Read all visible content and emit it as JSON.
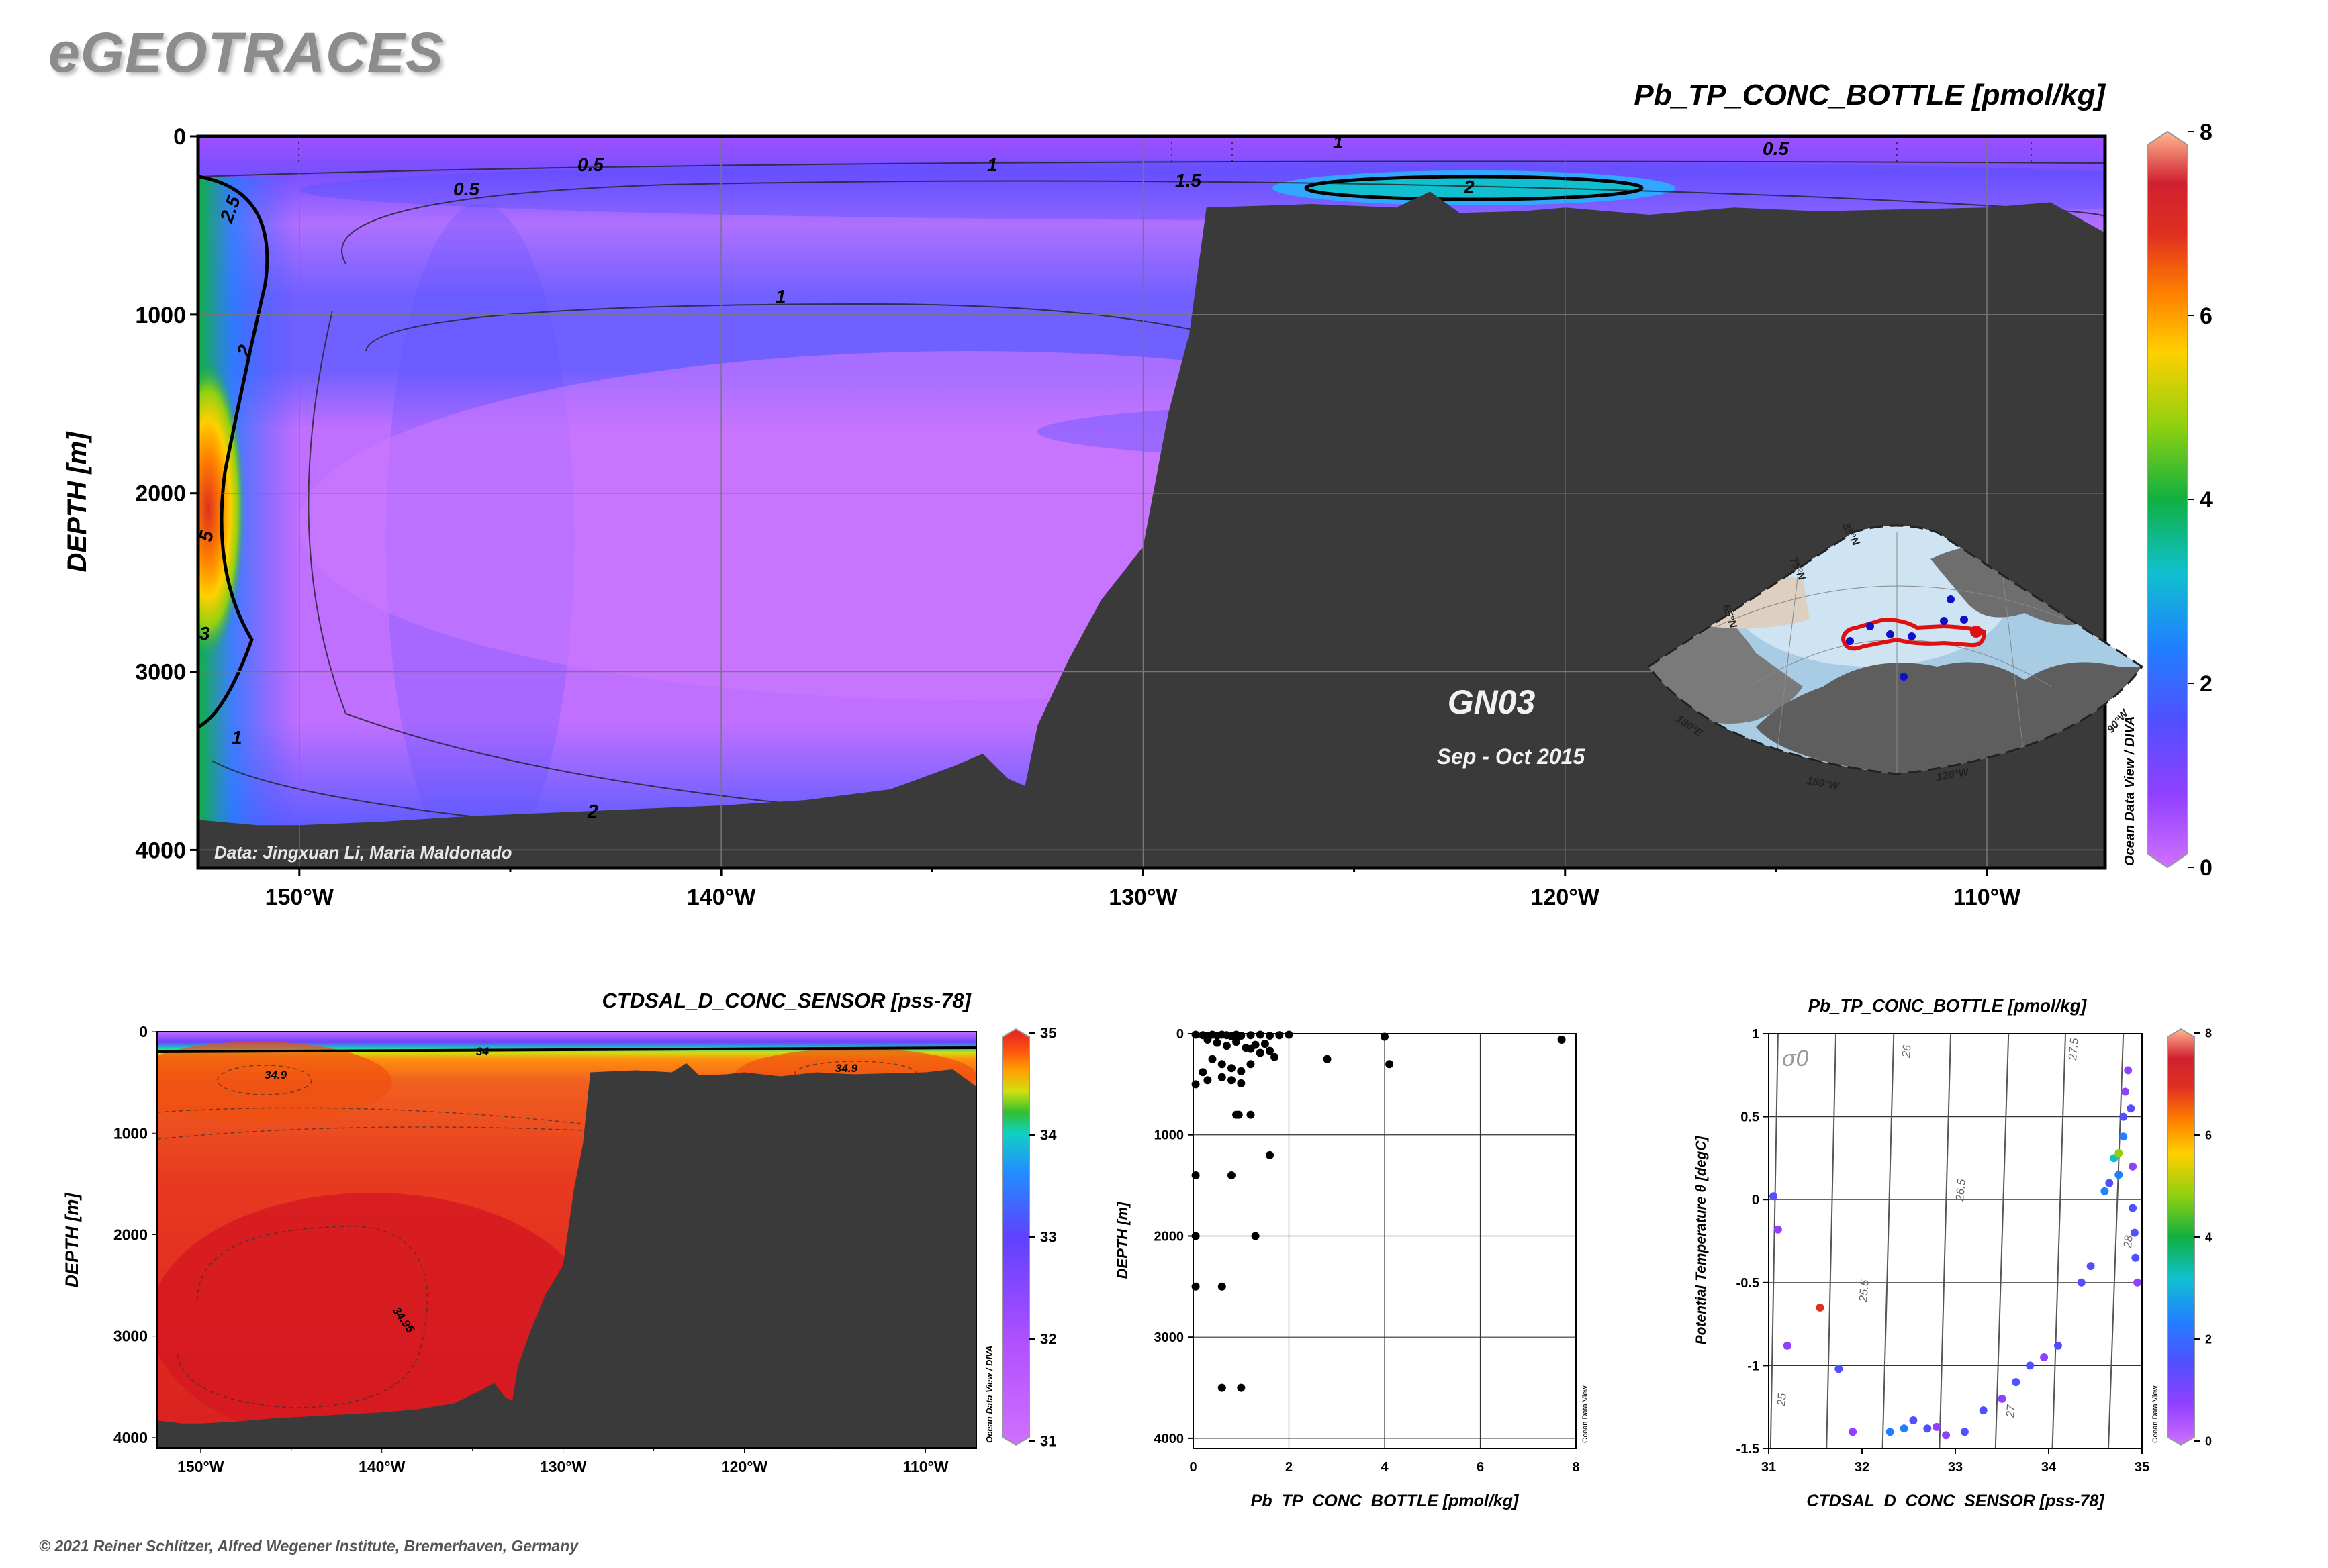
{
  "header": {
    "logo": "eGEOTRACES",
    "copyright": "© 2021 Reiner Schlitzer, Alfred Wegener Institute, Bremerhaven, Germany"
  },
  "watermarks": {
    "odv_diva": "Ocean Data View / DIVA",
    "odv": "Ocean Data View"
  },
  "main_section": {
    "title": "Pb_TP_CONC_BOTTLE [pmol/kg]",
    "ylabel": "DEPTH [m]",
    "cruise": "GN03",
    "dates": "Sep - Oct 2015",
    "credit": "Data: Jingxuan Li, Maria Maldonado",
    "contour_labels": [
      "0.5",
      "0.5",
      "1",
      "1",
      "1.5",
      "2",
      "0.5",
      "1",
      "2.5",
      "2",
      "5",
      "3",
      "1",
      "2",
      "1"
    ],
    "map_labels": [
      "85°N",
      "75°N",
      "65°N",
      "180°E",
      "150°W",
      "120°W",
      "90°W"
    ]
  },
  "salinity_section": {
    "title": "CTDSAL_D_CONC_SENSOR [pss-78]",
    "ylabel": "DEPTH [m]",
    "contour_labels": [
      "34",
      "34.9",
      "34.9",
      "34.95"
    ]
  },
  "profile_plot": {
    "xlabel": "Pb_TP_CONC_BOTTLE [pmol/kg]",
    "ylabel": "DEPTH [m]"
  },
  "ts_plot": {
    "title": "Pb_TP_CONC_BOTTLE [pmol/kg]",
    "xlabel": "CTDSAL_D_CONC_SENSOR [pss-78]",
    "ylabel": "Potential Temperature θ [degC]",
    "sigma_label": "σ0",
    "isopycnal_labels": [
      "25",
      "25.5",
      "26",
      "26.5",
      "27",
      "27.5",
      "28"
    ]
  },
  "colors": {
    "bathymetry": "#3a3a3a",
    "station_route": "#e01010",
    "station_dot": "#1010c8",
    "colormap_pb": [
      "#d070ff",
      "#9040ff",
      "#5050ff",
      "#2080ff",
      "#10c0d0",
      "#10b040",
      "#90d010",
      "#ffd000",
      "#ff8000",
      "#e03020",
      "#d02030",
      "#ffb890"
    ],
    "colormap_sal": [
      "#d070ff",
      "#b050ff",
      "#6040ff",
      "#2090ff",
      "#10d0c0",
      "#30c030",
      "#d0e010",
      "#ffa000",
      "#ff5010",
      "#e02020"
    ]
  },
  "chart_data": [
    {
      "type": "heatmap",
      "name": "section-pb",
      "title": "Pb_TP_CONC_BOTTLE [pmol/kg]",
      "xlabel": "",
      "ylabel": "DEPTH [m]",
      "x_range": [
        -152.4,
        -107.2
      ],
      "y_range": [
        4100,
        0
      ],
      "x_ticks": [
        -150,
        -140,
        -130,
        -120,
        -110
      ],
      "x_tick_labels": [
        "150°W",
        "140°W",
        "130°W",
        "120°W",
        "110°W"
      ],
      "y_ticks": [
        0,
        1000,
        2000,
        3000,
        4000
      ],
      "y_tick_labels": [
        "0",
        "1000",
        "2000",
        "3000",
        "4000"
      ],
      "colorbar": {
        "min": 0,
        "max": 8,
        "ticks": [
          0,
          2,
          4,
          6,
          8
        ]
      },
      "bathymetry": [
        [
          -152.4,
          3830
        ],
        [
          -151,
          3860
        ],
        [
          -150,
          3860
        ],
        [
          -148,
          3840
        ],
        [
          -146,
          3810
        ],
        [
          -144,
          3790
        ],
        [
          -142,
          3770
        ],
        [
          -140,
          3750
        ],
        [
          -138,
          3720
        ],
        [
          -136,
          3660
        ],
        [
          -134.5,
          3530
        ],
        [
          -133.8,
          3460
        ],
        [
          -133.2,
          3600
        ],
        [
          -132.8,
          3640
        ],
        [
          -132.5,
          3300
        ],
        [
          -131.8,
          2950
        ],
        [
          -131,
          2600
        ],
        [
          -130,
          2300
        ],
        [
          -129.4,
          1550
        ],
        [
          -128.9,
          1100
        ],
        [
          -128.5,
          400
        ],
        [
          -126,
          380
        ],
        [
          -124,
          400
        ],
        [
          -123.2,
          310
        ],
        [
          -122.5,
          430
        ],
        [
          -121,
          420
        ],
        [
          -120,
          400
        ],
        [
          -118,
          440
        ],
        [
          -116,
          400
        ],
        [
          -114,
          420
        ],
        [
          -112,
          410
        ],
        [
          -110,
          400
        ],
        [
          -108.5,
          370
        ],
        [
          -107.2,
          540
        ]
      ],
      "grid": true
    },
    {
      "type": "heatmap",
      "name": "section-salinity",
      "title": "CTDSAL_D_CONC_SENSOR [pss-78]",
      "xlabel": "",
      "ylabel": "DEPTH [m]",
      "x_range": [
        -152.4,
        -107.2
      ],
      "y_range": [
        4100,
        0
      ],
      "x_ticks": [
        -150,
        -140,
        -130,
        -120,
        -110
      ],
      "x_tick_labels": [
        "150°W",
        "140°W",
        "130°W",
        "120°W",
        "110°W"
      ],
      "y_ticks": [
        0,
        1000,
        2000,
        3000,
        4000
      ],
      "y_tick_labels": [
        "0",
        "1000",
        "2000",
        "3000",
        "4000"
      ],
      "colorbar": {
        "min": 31,
        "max": 35,
        "ticks": [
          31,
          32,
          33,
          34,
          35
        ]
      },
      "grid": false
    },
    {
      "type": "scatter",
      "name": "profile",
      "title": "",
      "xlabel": "Pb_TP_CONC_BOTTLE [pmol/kg]",
      "ylabel": "DEPTH [m]",
      "xlim": [
        0,
        8
      ],
      "ylim": [
        4100,
        0
      ],
      "x_ticks": [
        0,
        2,
        4,
        6,
        8
      ],
      "y_ticks": [
        0,
        1000,
        2000,
        3000,
        4000
      ],
      "grid": true,
      "points": [
        [
          0.05,
          10
        ],
        [
          0.2,
          15
        ],
        [
          0.3,
          20
        ],
        [
          0.4,
          10
        ],
        [
          0.5,
          20
        ],
        [
          0.6,
          10
        ],
        [
          0.7,
          15
        ],
        [
          0.8,
          25
        ],
        [
          0.9,
          10
        ],
        [
          1.0,
          20
        ],
        [
          1.2,
          15
        ],
        [
          1.4,
          10
        ],
        [
          1.6,
          20
        ],
        [
          1.8,
          15
        ],
        [
          2.0,
          10
        ],
        [
          0.3,
          60
        ],
        [
          0.5,
          90
        ],
        [
          0.7,
          120
        ],
        [
          0.9,
          80
        ],
        [
          1.1,
          140
        ],
        [
          1.3,
          110
        ],
        [
          1.5,
          100
        ],
        [
          1.2,
          150
        ],
        [
          1.4,
          190
        ],
        [
          0.4,
          250
        ],
        [
          0.6,
          300
        ],
        [
          0.8,
          340
        ],
        [
          1.0,
          370
        ],
        [
          1.2,
          300
        ],
        [
          1.6,
          170
        ],
        [
          1.7,
          230
        ],
        [
          0.2,
          380
        ],
        [
          0.3,
          460
        ],
        [
          0.6,
          430
        ],
        [
          0.8,
          460
        ],
        [
          1.0,
          490
        ],
        [
          2.8,
          250
        ],
        [
          4.0,
          30
        ],
        [
          4.1,
          300
        ],
        [
          7.7,
          60
        ],
        [
          0.05,
          500
        ],
        [
          0.9,
          800
        ],
        [
          0.95,
          800
        ],
        [
          1.2,
          800
        ],
        [
          1.6,
          1200
        ],
        [
          0.05,
          1400
        ],
        [
          0.8,
          1400
        ],
        [
          0.05,
          2000
        ],
        [
          1.3,
          2000
        ],
        [
          0.05,
          2500
        ],
        [
          0.6,
          2500
        ],
        [
          0.6,
          3500
        ],
        [
          1.0,
          3500
        ]
      ]
    },
    {
      "type": "scatter",
      "name": "ts-diagram",
      "title": "Pb_TP_CONC_BOTTLE [pmol/kg]",
      "xlabel": "CTDSAL_D_CONC_SENSOR [pss-78]",
      "ylabel": "Potential Temperature θ [degC]",
      "xlim": [
        31,
        35
      ],
      "ylim": [
        -1.5,
        1
      ],
      "x_ticks": [
        31,
        32,
        33,
        34,
        35
      ],
      "y_ticks": [
        -1.5,
        -1,
        -0.5,
        0,
        0.5,
        1
      ],
      "colorbar": {
        "min": 0,
        "max": 8,
        "ticks": [
          0,
          2,
          4,
          6,
          8
        ]
      },
      "isopycnals": [
        25,
        25.5,
        26,
        26.5,
        27,
        27.5,
        28
      ],
      "grid": true,
      "points": [
        [
          31.05,
          0.02,
          1.2
        ],
        [
          31.1,
          -0.18,
          1.0
        ],
        [
          31.2,
          -0.88,
          0.8
        ],
        [
          31.55,
          -0.65,
          6.5
        ],
        [
          31.75,
          -1.02,
          1.5
        ],
        [
          31.9,
          -1.4,
          0.8
        ],
        [
          32.3,
          -1.4,
          2.2
        ],
        [
          32.45,
          -1.38,
          2.5
        ],
        [
          32.55,
          -1.33,
          1.5
        ],
        [
          32.7,
          -1.38,
          1.2
        ],
        [
          32.8,
          -1.37,
          1.0
        ],
        [
          32.9,
          -1.42,
          0.9
        ],
        [
          33.1,
          -1.4,
          1.1
        ],
        [
          33.3,
          -1.27,
          1.4
        ],
        [
          33.5,
          -1.2,
          1.0
        ],
        [
          33.65,
          -1.1,
          1.2
        ],
        [
          33.8,
          -1.0,
          1.3
        ],
        [
          33.95,
          -0.95,
          1.0
        ],
        [
          34.1,
          -0.88,
          1.5
        ],
        [
          34.35,
          -0.5,
          1.2
        ],
        [
          34.45,
          -0.4,
          1.4
        ],
        [
          34.6,
          0.05,
          2.5
        ],
        [
          34.7,
          0.25,
          3.0
        ],
        [
          34.75,
          0.28,
          4.5
        ],
        [
          34.8,
          0.38,
          2.0
        ],
        [
          34.8,
          0.5,
          1.5
        ],
        [
          34.82,
          0.65,
          1.0
        ],
        [
          34.85,
          0.78,
          0.6
        ],
        [
          34.88,
          0.55,
          1.2
        ],
        [
          34.9,
          0.2,
          1.0
        ],
        [
          34.9,
          -0.05,
          1.5
        ],
        [
          34.92,
          -0.2,
          1.8
        ],
        [
          34.93,
          -0.35,
          1.2
        ],
        [
          34.95,
          -0.5,
          0.6
        ],
        [
          34.75,
          0.15,
          2.2
        ],
        [
          34.65,
          0.1,
          1.8
        ]
      ]
    }
  ]
}
